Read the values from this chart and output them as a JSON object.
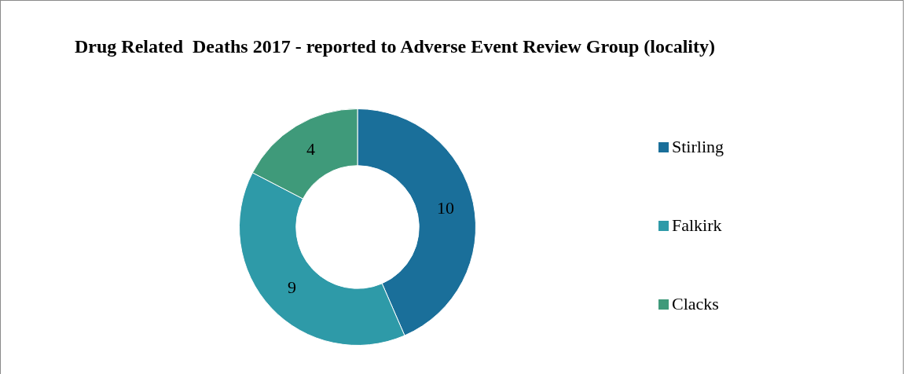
{
  "chart_data": {
    "type": "donut",
    "title": "Drug Related  Deaths 2017 - reported to Adverse Event Review Group (locality)",
    "categories": [
      "Stirling",
      "Falkirk",
      "Clacks"
    ],
    "values": [
      10,
      9,
      4
    ],
    "colors": [
      "#1a6f9a",
      "#2e9aa8",
      "#3f9a7a"
    ],
    "data_labels": true,
    "legend": "right"
  }
}
